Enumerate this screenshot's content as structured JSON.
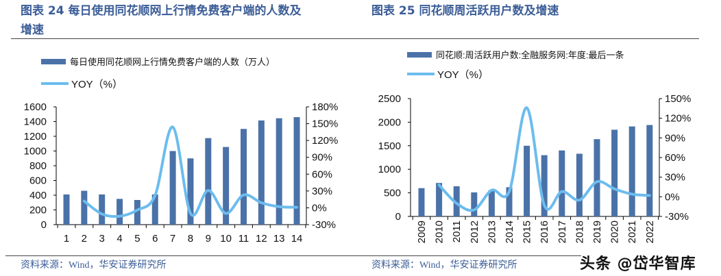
{
  "colors": {
    "title": "#3b5d97",
    "bar": "#4a72a8",
    "line": "#6cbcee"
  },
  "watermark": "头条 @岱华智库",
  "chart_data": [
    {
      "type": "bar+line",
      "title": "图表 24 每日使用同花顺网上行情免费客户端的人数及增速",
      "title_line1": "图表 24 每日使用同花顺网上行情免费客户端的人数及",
      "title_line2": "增速",
      "source": "资料来源：Wind，华安证券研究所",
      "categories": [
        "1",
        "2",
        "3",
        "4",
        "5",
        "6",
        "7",
        "8",
        "9",
        "10",
        "11",
        "12",
        "13",
        "14"
      ],
      "series": [
        {
          "name": "每日使用同花顺网上行情免费客户端的人数（万人）",
          "type": "bar",
          "axis": "left",
          "values": [
            410,
            460,
            410,
            350,
            335,
            410,
            1000,
            900,
            1175,
            1055,
            1300,
            1415,
            1445,
            1460
          ]
        },
        {
          "name": "YOY（%）",
          "type": "line",
          "axis": "right",
          "values": [
            null,
            12,
            -11,
            -15,
            -4,
            22,
            144,
            -10,
            31,
            -10,
            23,
            9,
            2,
            1
          ]
        }
      ],
      "ylim": [
        0,
        1600
      ],
      "yticks": [
        "0",
        "200",
        "400",
        "600",
        "800",
        "1000",
        "1200",
        "1400",
        "1600"
      ],
      "y2lim": [
        -30,
        180
      ],
      "y2ticks": [
        "-30%",
        "0%",
        "30%",
        "60%",
        "90%",
        "120%",
        "150%",
        "180%"
      ],
      "legend": "top-left",
      "grid": false
    },
    {
      "type": "bar+line",
      "title": "图表 25 同花顺周活跃用户数及增速",
      "source": "资料来源：Wind，华安证券研究所",
      "categories": [
        "2009",
        "2010",
        "2011",
        "2012",
        "2013",
        "2014",
        "2015",
        "2016",
        "2017",
        "2018",
        "2019",
        "2020",
        "2021",
        "2022"
      ],
      "series": [
        {
          "name": "同花顺:周活跃用户数:全融服务网:年度:最后一条",
          "type": "bar",
          "axis": "left",
          "values": [
            600,
            710,
            640,
            510,
            560,
            620,
            1500,
            1300,
            1400,
            1330,
            1640,
            1840,
            1910,
            1940
          ]
        },
        {
          "name": "YOY（%）",
          "type": "line",
          "axis": "right",
          "values": [
            null,
            18,
            -10,
            -20,
            10,
            8,
            136,
            -13,
            8,
            -5,
            23,
            12,
            4,
            2
          ]
        }
      ],
      "ylim": [
        0,
        2500
      ],
      "yticks": [
        "0",
        "500",
        "1000",
        "1500",
        "2000",
        "2500"
      ],
      "y2lim": [
        -30,
        150
      ],
      "y2ticks": [
        "-30%",
        "0%",
        "30%",
        "60%",
        "90%",
        "120%",
        "150%"
      ],
      "legend": "top-left",
      "grid": false
    }
  ]
}
